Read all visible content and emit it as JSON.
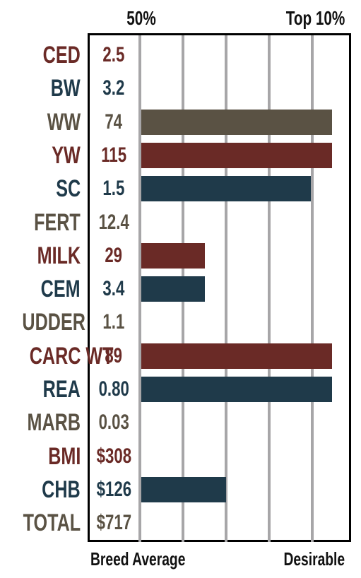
{
  "header": {
    "left_label": "50%",
    "right_label": "Top 10%"
  },
  "footer": {
    "left_label": "Breed Average",
    "right_label": "Desirable"
  },
  "chart_data": {
    "type": "bar",
    "orientation": "horizontal",
    "categories": [
      "CED",
      "BW",
      "WW",
      "YW",
      "SC",
      "FERT",
      "MILK",
      "CEM",
      "UDDER",
      "CARC WT",
      "REA",
      "MARB",
      "BMI",
      "CHB",
      "TOTAL"
    ],
    "value_labels": [
      "2.5",
      "3.2",
      "74",
      "115",
      "1.5",
      "12.4",
      "29",
      "3.4",
      "1.1",
      "89",
      "0.80",
      "0.03",
      "$308",
      "$126",
      "$717"
    ],
    "bar_values": [
      0,
      0,
      90,
      90,
      80,
      0,
      30,
      30,
      0,
      90,
      90,
      0,
      0,
      40,
      0
    ],
    "bar_unit": "percent of scale from 50% (Breed Average) toward Top 10% (Desirable)",
    "colors": [
      "#6a2a26",
      "#1f3a4a",
      "#5a5244",
      "#6a2a26",
      "#1f3a4a",
      "#5a5244",
      "#6a2a26",
      "#1f3a4a",
      "#5a5244",
      "#6a2a26",
      "#1f3a4a",
      "#5a5244",
      "#6a2a26",
      "#1f3a4a",
      "#5a5244"
    ],
    "axis_range": [
      0,
      100
    ],
    "grid": true
  }
}
